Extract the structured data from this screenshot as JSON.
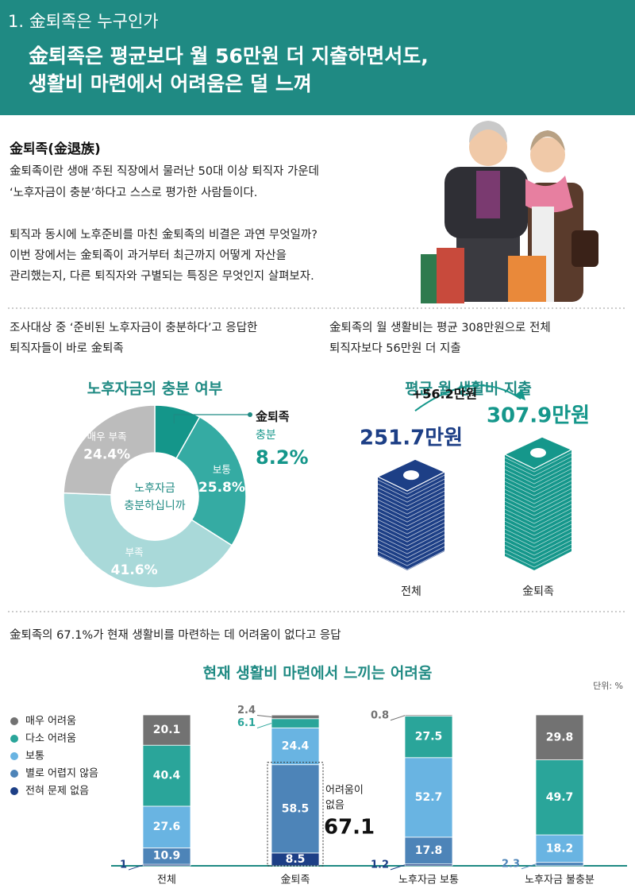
{
  "header": {
    "section": "1. 金퇴족은 누구인가",
    "title_lines": [
      "金퇴족은 평균보다 월 56만원 더 지출하면서도,",
      "생활비 마련에서 어려움은 덜 느껴"
    ]
  },
  "intro": {
    "heading": "金퇴족(金退族)",
    "paragraphs": [
      [
        "金퇴족이란 생애 주된 직장에서 물러난 50대 이상 퇴직자 가운데",
        "‘노후자금이 충분’하다고 스스로 평가한 사람들이다."
      ],
      [
        "퇴직과 동시에 노후준비를 마친 金퇴족의 비결은 과연 무엇일까?",
        "이번 장에서는 金퇴족이 과거부터 최근까지 어떻게 자산을",
        "관리했는지, 다른 퇴직자와 구별되는 특징은 무엇인지 살펴보자."
      ]
    ]
  },
  "captions": {
    "donut": [
      "조사대상 중 ‘준비된 노후자금이 충분하다’고 응답한",
      "퇴직자들이 바로 金퇴족"
    ],
    "spending": [
      "金퇴족의 월 생활비는 평균 308만원으로 전체",
      "퇴직자보다 56만원 더 지출"
    ],
    "difficulty": "金퇴족의 67.1%가 현재 생활비를 마련하는 데 어려움이 없다고 응답"
  },
  "chart_data": [
    {
      "type": "donut",
      "title": "노후자금의 충분 여부",
      "center_label": [
        "노후자금",
        "충분하십니까"
      ],
      "callout": "金퇴족",
      "categories": [
        "충분",
        "보통",
        "부족",
        "매우 부족"
      ],
      "values": [
        8.2,
        25.8,
        41.6,
        24.4
      ],
      "value_labels": [
        "8.2%",
        "25.8%",
        "41.6%",
        "24.4%"
      ],
      "colors": [
        "#14968a",
        "#35aba3",
        "#a9d9d9",
        "#bcbcbc"
      ]
    },
    {
      "type": "stack",
      "title": "평균 월 생활비 지출",
      "categories": [
        "전체",
        "金퇴족"
      ],
      "values": [
        251.7,
        307.9
      ],
      "value_labels": [
        "251.7만원",
        "307.9만원"
      ],
      "colors": [
        "#1d3f86",
        "#15978b"
      ],
      "difference": {
        "value": 56.2,
        "label": "+56.2만원"
      }
    },
    {
      "type": "stacked_bar",
      "title": "현재 생활비 마련에서 느끼는 어려움",
      "unit": "단위: %",
      "categories": [
        "전체",
        "金퇴족",
        "노후자금 보통",
        "노후자금 불충분"
      ],
      "series": [
        {
          "name": "매우 어려움",
          "color": "#727272",
          "values": [
            20.1,
            2.4,
            0.8,
            29.8
          ]
        },
        {
          "name": "다소 어려움",
          "color": "#2aa59a",
          "values": [
            40.4,
            6.1,
            27.5,
            49.7
          ]
        },
        {
          "name": "보통",
          "color": "#69b4e2",
          "values": [
            27.6,
            24.4,
            52.7,
            18.2
          ]
        },
        {
          "name": "별로 어렵지 않음",
          "color": "#4d84b8",
          "values": [
            10.9,
            58.5,
            17.8,
            2.3
          ]
        },
        {
          "name": "전혀 문제 없음",
          "color": "#1d3f86",
          "values": [
            1.0,
            8.5,
            1.2,
            0
          ]
        }
      ],
      "annotation": {
        "label_lines": [
          "어려움이",
          "없음"
        ],
        "value": 67.1
      }
    }
  ]
}
